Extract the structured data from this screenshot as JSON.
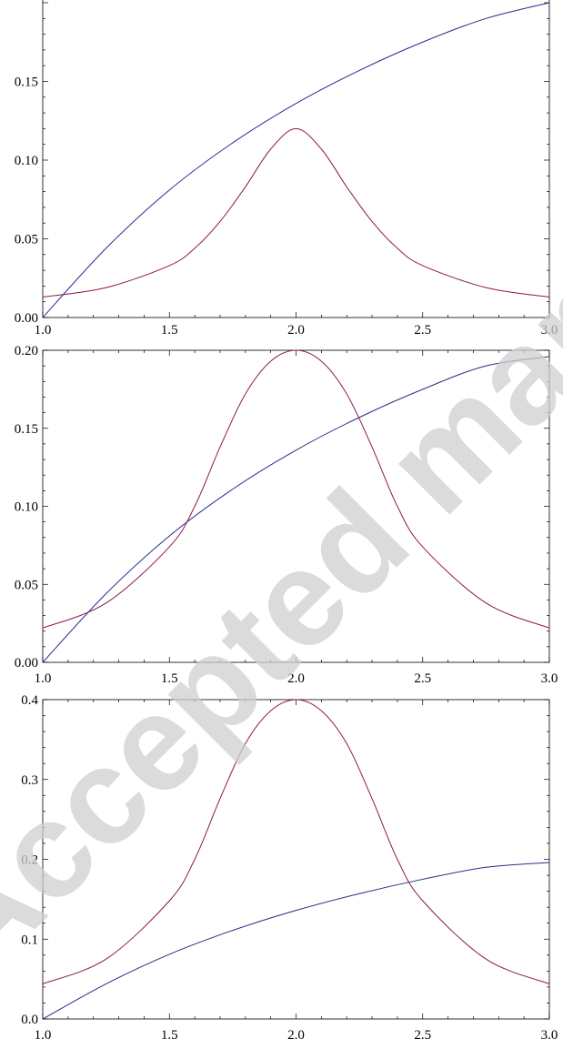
{
  "watermark": {
    "text": "Accepted manuscript"
  },
  "chart_data": [
    {
      "type": "line",
      "title": "",
      "xlabel": "",
      "ylabel": "",
      "xlim": [
        1.0,
        3.0
      ],
      "ylim": [
        0.0,
        0.2
      ],
      "x_ticks": [
        "1.0",
        "1.5",
        "2.0",
        "2.5",
        "3.0"
      ],
      "y_ticks": [
        "0.00",
        "0.05",
        "0.10",
        "0.15"
      ],
      "grid": false,
      "series": [
        {
          "color": "#2b2b8c",
          "x": [
            1.0,
            1.25,
            1.5,
            1.75,
            2.0,
            2.25,
            2.5,
            2.75,
            3.0
          ],
          "y": [
            0.0,
            0.044,
            0.081,
            0.111,
            0.136,
            0.157,
            0.175,
            0.19,
            0.2
          ]
        },
        {
          "color": "#8b1a4a",
          "x": [
            1.0,
            1.25,
            1.5,
            1.6,
            1.7,
            1.8,
            1.9,
            2.0,
            2.1,
            2.2,
            2.3,
            2.4,
            2.5,
            2.75,
            3.0
          ],
          "y": [
            0.013,
            0.019,
            0.033,
            0.044,
            0.061,
            0.083,
            0.107,
            0.12,
            0.107,
            0.083,
            0.061,
            0.044,
            0.033,
            0.019,
            0.013
          ]
        }
      ]
    },
    {
      "type": "line",
      "title": "",
      "xlabel": "",
      "ylabel": "",
      "xlim": [
        1.0,
        3.0
      ],
      "ylim": [
        0.0,
        0.2
      ],
      "x_ticks": [
        "1.0",
        "1.5",
        "2.0",
        "2.5",
        "3.0"
      ],
      "y_ticks": [
        "0.00",
        "0.05",
        "0.10",
        "0.15",
        "0.20"
      ],
      "grid": false,
      "series": [
        {
          "color": "#2b2b8c",
          "x": [
            1.0,
            1.25,
            1.5,
            1.75,
            2.0,
            2.25,
            2.5,
            2.75,
            3.0
          ],
          "y": [
            0.0,
            0.044,
            0.081,
            0.111,
            0.136,
            0.157,
            0.175,
            0.19,
            0.196
          ]
        },
        {
          "color": "#8b1a4a",
          "x": [
            1.0,
            1.25,
            1.5,
            1.6,
            1.7,
            1.8,
            1.9,
            2.0,
            2.1,
            2.2,
            2.3,
            2.4,
            2.5,
            2.75,
            3.0
          ],
          "y": [
            0.022,
            0.038,
            0.074,
            0.1,
            0.138,
            0.172,
            0.193,
            0.2,
            0.193,
            0.172,
            0.138,
            0.1,
            0.074,
            0.038,
            0.022
          ]
        }
      ]
    },
    {
      "type": "line",
      "title": "",
      "xlabel": "",
      "ylabel": "",
      "xlim": [
        1.0,
        3.0
      ],
      "ylim": [
        0.0,
        0.4
      ],
      "x_ticks": [
        "1.0",
        "1.5",
        "2.0",
        "2.5",
        "3.0"
      ],
      "y_ticks": [
        "0.0",
        "0.1",
        "0.2",
        "0.3",
        "0.4"
      ],
      "grid": false,
      "series": [
        {
          "color": "#2b2b8c",
          "x": [
            1.0,
            1.25,
            1.5,
            1.75,
            2.0,
            2.25,
            2.5,
            2.75,
            3.0
          ],
          "y": [
            0.0,
            0.044,
            0.081,
            0.111,
            0.136,
            0.157,
            0.175,
            0.19,
            0.196
          ]
        },
        {
          "color": "#8b1a4a",
          "x": [
            1.0,
            1.25,
            1.5,
            1.6,
            1.7,
            1.8,
            1.9,
            2.0,
            2.1,
            2.2,
            2.3,
            2.4,
            2.5,
            2.75,
            3.0
          ],
          "y": [
            0.044,
            0.075,
            0.148,
            0.2,
            0.276,
            0.345,
            0.386,
            0.4,
            0.386,
            0.345,
            0.276,
            0.2,
            0.148,
            0.075,
            0.044
          ]
        }
      ]
    }
  ]
}
